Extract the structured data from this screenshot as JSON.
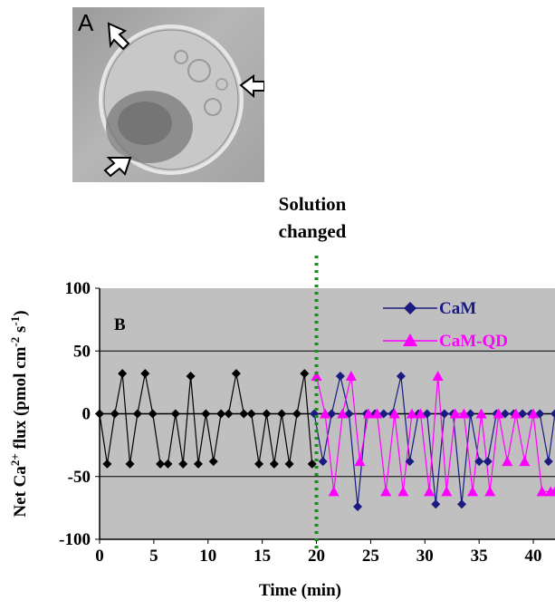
{
  "panel_a": {
    "label": "A"
  },
  "annotation": {
    "line1": "Solution",
    "line2": "changed"
  },
  "chart_data": {
    "type": "line",
    "panel_label": "B",
    "xlabel": "Time (min)",
    "ylabel": "Net Ca2+ flux (pmol cm-2 s-1)",
    "ylabel_parts": {
      "pre": "Net Ca",
      "sup1": "2+",
      "mid": " flux (pmol cm",
      "sup2": "-2",
      "mid2": " s",
      "sup3": "-1",
      "post": ")"
    },
    "xlim": [
      0,
      42
    ],
    "ylim": [
      -100,
      100
    ],
    "x_ticks": [
      0,
      5,
      10,
      15,
      20,
      25,
      30,
      35,
      40
    ],
    "y_ticks": [
      100,
      50,
      0,
      -50,
      -100
    ],
    "gridlines_y": [
      50,
      -50
    ],
    "solution_changed_x": 20,
    "background": "#c0c0c0",
    "legend_position": "top-right",
    "series": [
      {
        "name": "",
        "color": "#000000",
        "marker": "diamond",
        "x": [
          0,
          0.7,
          1.4,
          2.1,
          2.8,
          3.5,
          4.2,
          4.9,
          5.6,
          6.3,
          7.0,
          7.7,
          8.4,
          9.1,
          9.8,
          10.5,
          11.2,
          11.9,
          12.6,
          13.3,
          14.0,
          14.7,
          15.4,
          16.1,
          16.8,
          17.5,
          18.2,
          18.9,
          19.6
        ],
        "y": [
          0,
          -40,
          0,
          32,
          -40,
          0,
          32,
          0,
          -40,
          -40,
          0,
          -40,
          30,
          -40,
          0,
          -38,
          0,
          0,
          32,
          0,
          0,
          -40,
          0,
          -40,
          0,
          -40,
          0,
          32,
          -40
        ]
      },
      {
        "name": "CaM",
        "color": "#1a1a80",
        "marker": "diamond",
        "x": [
          19.8,
          20.6,
          21.4,
          22.2,
          23.0,
          23.8,
          24.6,
          25.4,
          26.2,
          27.0,
          27.8,
          28.6,
          29.4,
          30.2,
          31.0,
          31.8,
          32.6,
          33.4,
          34.2,
          35.0,
          35.8,
          36.6,
          37.4,
          38.2,
          39.0,
          39.8,
          40.6,
          41.4,
          42.0
        ],
        "y": [
          0,
          -38,
          0,
          30,
          0,
          -74,
          0,
          0,
          0,
          0,
          30,
          -38,
          0,
          0,
          -72,
          0,
          0,
          -72,
          0,
          -38,
          -38,
          0,
          0,
          0,
          0,
          0,
          0,
          -38,
          0
        ]
      },
      {
        "name": "CaM-QD",
        "color": "#ff00ff",
        "marker": "triangle",
        "x": [
          20.0,
          20.8,
          21.6,
          22.4,
          23.2,
          24.0,
          24.8,
          25.6,
          26.4,
          27.2,
          28.0,
          28.8,
          29.6,
          30.4,
          31.2,
          32.0,
          32.8,
          33.6,
          34.4,
          35.2,
          36.0,
          36.8,
          37.6,
          38.4,
          39.2,
          40.0,
          40.8,
          41.6,
          42.0
        ],
        "y": [
          30,
          0,
          -62,
          0,
          30,
          -38,
          0,
          0,
          -62,
          0,
          -62,
          0,
          0,
          -62,
          30,
          -62,
          0,
          0,
          -62,
          0,
          -62,
          0,
          -38,
          0,
          -38,
          0,
          -62,
          -62,
          -62
        ]
      }
    ]
  }
}
